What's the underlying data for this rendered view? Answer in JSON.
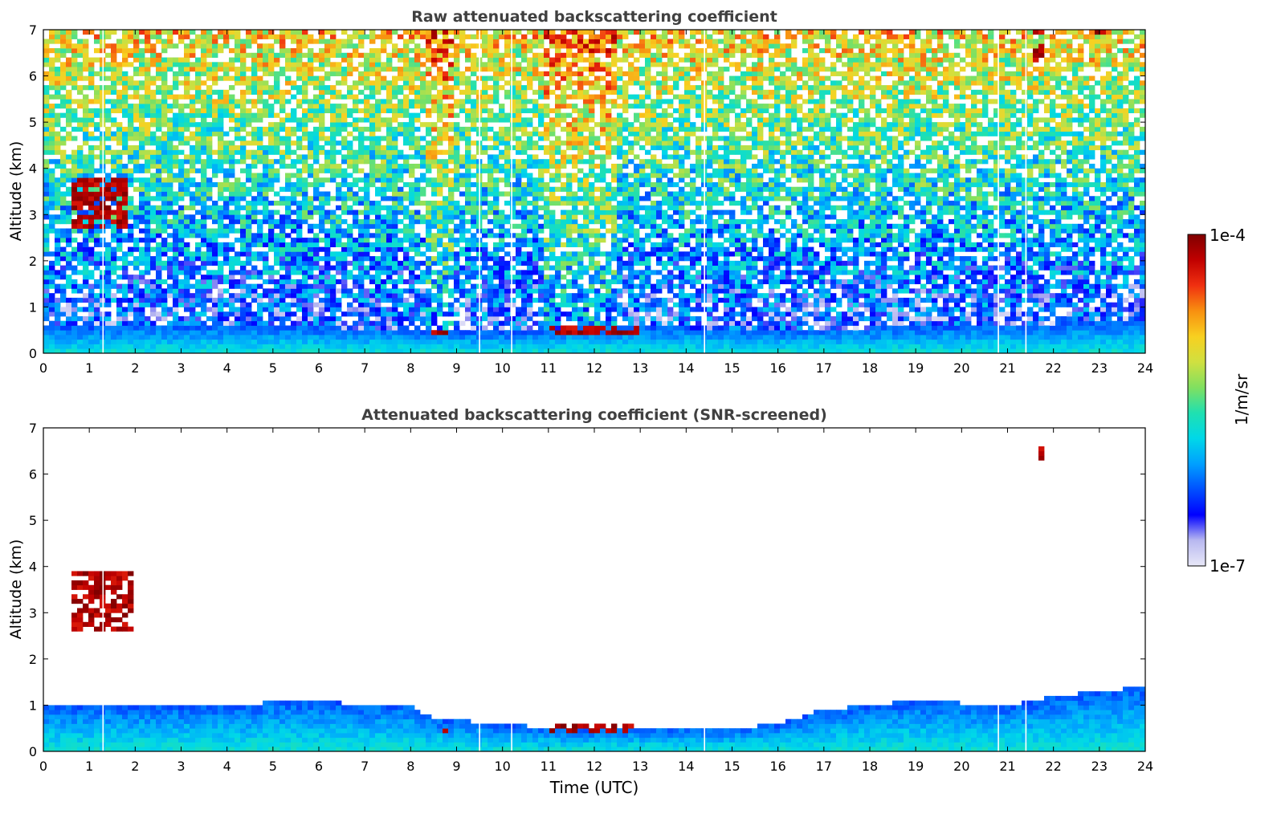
{
  "figure": {
    "colorbar": {
      "label": "1/m/sr",
      "max_label": "1e-4",
      "min_label": "1e-7",
      "scale": "log",
      "colormap_stops": [
        "#e8e8f8",
        "#b8b8f0",
        "#0000ff",
        "#0050ff",
        "#00a0ff",
        "#00d8e8",
        "#20e0b0",
        "#80e060",
        "#d0e040",
        "#f8d020",
        "#f89010",
        "#f03010",
        "#c00000",
        "#800000"
      ]
    },
    "xlabel": "Time (UTC)"
  },
  "chart_data": [
    {
      "type": "heatmap",
      "title": "Raw attenuated backscattering coefficient",
      "xlabel": "",
      "ylabel": "Altitude (km)",
      "xlim": [
        0,
        24
      ],
      "ylim": [
        0,
        7
      ],
      "xticks": [
        "0",
        "1",
        "2",
        "3",
        "4",
        "5",
        "6",
        "7",
        "8",
        "9",
        "10",
        "11",
        "12",
        "13",
        "14",
        "15",
        "16",
        "17",
        "18",
        "19",
        "20",
        "21",
        "22",
        "23",
        "24"
      ],
      "yticks": [
        "0",
        "1",
        "2",
        "3",
        "4",
        "5",
        "6",
        "7"
      ],
      "boundary_layer_top_km": [
        [
          0,
          0.55
        ],
        [
          2,
          0.6
        ],
        [
          5,
          0.6
        ],
        [
          8,
          0.5
        ],
        [
          10,
          0.45
        ],
        [
          12,
          0.6
        ],
        [
          14,
          0.55
        ],
        [
          16,
          0.5
        ],
        [
          20,
          0.6
        ],
        [
          24,
          0.7
        ]
      ],
      "cloud_features": [
        {
          "t": [
            0.6,
            1.8
          ],
          "alt_km": [
            2.7,
            3.8
          ]
        },
        {
          "t": [
            8.4,
            8.8
          ],
          "alt_km": [
            0.4,
            0.5
          ]
        },
        {
          "t": [
            11.0,
            13.0
          ],
          "alt_km": [
            0.4,
            0.55
          ]
        },
        {
          "t": [
            22.8,
            23.1
          ],
          "alt_km": [
            6.9,
            7.0
          ]
        },
        {
          "t": [
            21.5,
            21.8
          ],
          "alt_km": [
            6.3,
            7.0
          ]
        }
      ],
      "data_gaps_hours": [
        1.3,
        9.5,
        10.2,
        14.4,
        20.8,
        21.4
      ]
    },
    {
      "type": "heatmap",
      "title": "Attenuated backscattering coefficient (SNR-screened)",
      "xlabel": "Time (UTC)",
      "ylabel": "Altitude (km)",
      "xlim": [
        0,
        24
      ],
      "ylim": [
        0,
        7
      ],
      "xticks": [
        "0",
        "1",
        "2",
        "3",
        "4",
        "5",
        "6",
        "7",
        "8",
        "9",
        "10",
        "11",
        "12",
        "13",
        "14",
        "15",
        "16",
        "17",
        "18",
        "19",
        "20",
        "21",
        "22",
        "23",
        "24"
      ],
      "yticks": [
        "0",
        "1",
        "2",
        "3",
        "4",
        "5",
        "6",
        "7"
      ],
      "boundary_layer_top_km": [
        [
          0,
          1.0
        ],
        [
          2,
          1.0
        ],
        [
          4.5,
          1.0
        ],
        [
          5,
          1.1
        ],
        [
          8,
          1.0
        ],
        [
          8.5,
          0.7
        ],
        [
          10,
          0.6
        ],
        [
          11,
          0.5
        ],
        [
          13,
          0.5
        ],
        [
          15,
          0.5
        ],
        [
          16,
          0.6
        ],
        [
          17,
          0.9
        ],
        [
          19,
          1.1
        ],
        [
          21,
          1.0
        ],
        [
          22,
          1.2
        ],
        [
          24,
          1.4
        ]
      ],
      "cloud_features": [
        {
          "t": [
            0.6,
            2.0
          ],
          "alt_km": [
            2.6,
            3.9
          ]
        },
        {
          "t": [
            8.4,
            8.8
          ],
          "alt_km": [
            0.4,
            0.5
          ]
        },
        {
          "t": [
            11.0,
            13.0
          ],
          "alt_km": [
            0.4,
            0.55
          ]
        },
        {
          "t": [
            21.7,
            21.8
          ],
          "alt_km": [
            6.3,
            6.6
          ]
        }
      ],
      "data_gaps_hours": [
        1.3,
        9.5,
        10.2,
        14.4,
        20.8,
        21.4
      ]
    }
  ]
}
